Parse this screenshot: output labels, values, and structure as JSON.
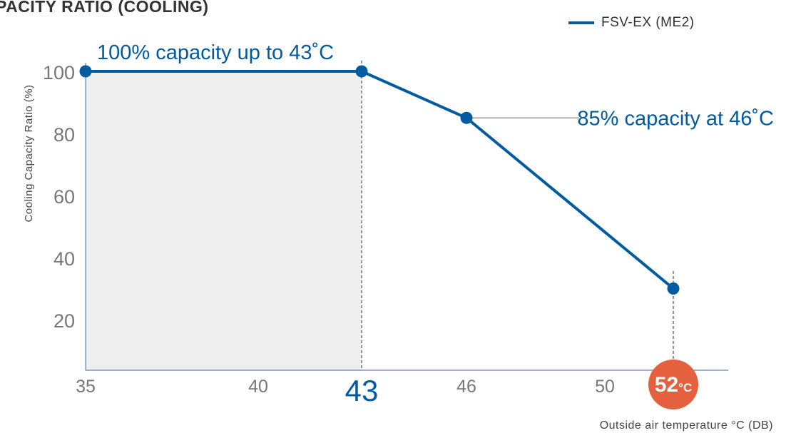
{
  "title": "PACITY RATIO (COOLING)",
  "colors": {
    "series": "#005BA1",
    "shade": "#EEEEEE",
    "axis": "#5A86B8",
    "highlight": "#E4603F",
    "muted": "#888888"
  },
  "chart_data": {
    "type": "line",
    "ylabel": "Cooling Capacity Ratio (%)",
    "xlabel": "Outside air temperature °C (DB)",
    "x_ticks": [
      "35",
      "40",
      "43",
      "46",
      "50",
      "52"
    ],
    "x_tick_values": [
      35,
      40,
      43,
      46,
      50,
      52
    ],
    "y_ticks": [
      "100",
      "80",
      "60",
      "40",
      "20"
    ],
    "y_tick_values": [
      100,
      80,
      60,
      40,
      20
    ],
    "series": [
      {
        "name": "FSV-EX (ME2)",
        "x": [
          35,
          43,
          46,
          52
        ],
        "y": [
          100,
          100,
          85,
          30
        ]
      }
    ],
    "annotations": [
      {
        "text": "100% capacity up to 43˚C",
        "x": 43,
        "y": 100
      },
      {
        "text": "85% capacity at 46˚C",
        "x": 46,
        "y": 85
      }
    ],
    "highlight": {
      "value": "52",
      "unit": "°C"
    },
    "shaded_range": [
      35,
      43
    ]
  }
}
